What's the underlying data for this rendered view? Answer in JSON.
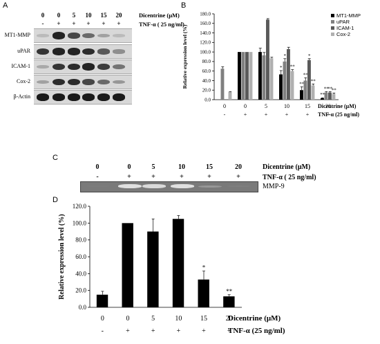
{
  "panelA": {
    "letter": "A",
    "lanes": [
      "0",
      "0",
      "5",
      "10",
      "15",
      "20"
    ],
    "tnf_signs": [
      "-",
      "+",
      "+",
      "+",
      "+",
      "+"
    ],
    "condition_dicentrine": "Dicentrine (μM)",
    "condition_tnf": "TNF-α ( 25 ng/ml)",
    "blots": [
      {
        "label": "MT1-MMP",
        "intensity": [
          0.05,
          0.9,
          0.7,
          0.5,
          0.2,
          0.05
        ]
      },
      {
        "label": "uPAR",
        "intensity": [
          0.8,
          0.9,
          0.9,
          0.85,
          0.6,
          0.3
        ]
      },
      {
        "label": "ICAM-1",
        "intensity": [
          0.15,
          0.8,
          0.85,
          0.9,
          0.75,
          0.45
        ]
      },
      {
        "label": "Cox-2",
        "intensity": [
          0.2,
          0.85,
          0.85,
          0.7,
          0.5,
          0.25
        ]
      },
      {
        "label": "β-Actin",
        "intensity": [
          0.95,
          0.95,
          0.95,
          0.95,
          0.95,
          0.95
        ]
      }
    ]
  },
  "panelB": {
    "letter": "B",
    "chart_data": {
      "type": "bar",
      "categories": [
        "0",
        "0",
        "5",
        "10",
        "15",
        "20"
      ],
      "tnf_signs": [
        "-",
        "+",
        "+",
        "+",
        "+",
        "+"
      ],
      "ylabel": "Relative expression level (%)",
      "ylim": [
        0,
        180
      ],
      "yticks": [
        "0.0",
        "20.0",
        "40.0",
        "60.0",
        "80.0",
        "100.0",
        "120.0",
        "140.0",
        "160.0",
        "180.0"
      ],
      "xlabel_dicentrine": "Dicentrine (μM)",
      "xlabel_tnf": "TNF-α (25 ng/ml)",
      "legend_position": "top-right",
      "series": [
        {
          "name": "MT1-MMP",
          "color": "#000000",
          "values": [
            0,
            100,
            100,
            53,
            20,
            3
          ],
          "errors": [
            0,
            0,
            8,
            8,
            7,
            1
          ],
          "marks": [
            "",
            "",
            "",
            "*",
            "**",
            "**"
          ]
        },
        {
          "name": "uPAR",
          "color": "#808080",
          "values": [
            65,
            100,
            93,
            80,
            40,
            15
          ],
          "errors": [
            4,
            0,
            6,
            6,
            6,
            2
          ],
          "marks": [
            "",
            "",
            "",
            "*",
            "**",
            "**"
          ]
        },
        {
          "name": "ICAM-1",
          "color": "#5a5a5a",
          "values": [
            0,
            100,
            168,
            106,
            83,
            15
          ],
          "errors": [
            0,
            0,
            2,
            4,
            3,
            2
          ],
          "marks": [
            "",
            "",
            "",
            "",
            "*",
            "**"
          ]
        },
        {
          "name": "Cox-2",
          "color": "#b0b0b0",
          "values": [
            16,
            100,
            87,
            60,
            30,
            12
          ],
          "errors": [
            1,
            0,
            2,
            3,
            3,
            2
          ],
          "marks": [
            "",
            "",
            "",
            "**",
            "**",
            "**"
          ]
        }
      ]
    }
  },
  "panelC": {
    "letter": "C",
    "lanes": [
      "0",
      "0",
      "5",
      "10",
      "15",
      "20"
    ],
    "tnf_signs": [
      "-",
      "+",
      "+",
      "+",
      "+",
      "+"
    ],
    "condition_dicentrine": "Dicentrine (μM)",
    "condition_tnf": "TNF-α ( 25 ng/ml)",
    "gel_label": "MMP-9",
    "intensity": [
      0.02,
      0.85,
      0.8,
      0.85,
      0.25,
      0.05
    ]
  },
  "panelD": {
    "letter": "D",
    "chart_data": {
      "type": "bar",
      "categories": [
        "0",
        "0",
        "5",
        "10",
        "15",
        "20"
      ],
      "tnf_signs": [
        "-",
        "+",
        "+",
        "+",
        "+",
        "+"
      ],
      "ylabel": "Relative expression level (%)",
      "ylim": [
        0,
        120
      ],
      "yticks": [
        "0.0",
        "20.0",
        "40.0",
        "60.0",
        "80.0",
        "100.0",
        "120.0"
      ],
      "xlabel_dicentrine": "Dicentrine (μM)",
      "xlabel_tnf": "TNF-α (25 ng/ml)",
      "series": [
        {
          "color": "#000000",
          "values": [
            15,
            100,
            90,
            105,
            33,
            13
          ],
          "errors": [
            4,
            0,
            15,
            4,
            10,
            2
          ],
          "marks": [
            "",
            "",
            "",
            "",
            "*",
            "**"
          ]
        }
      ]
    }
  }
}
